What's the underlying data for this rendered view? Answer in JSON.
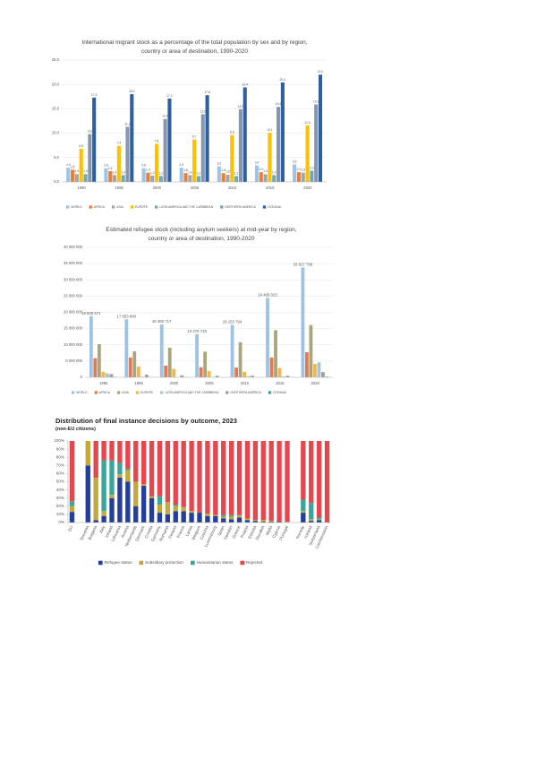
{
  "chart_data": [
    {
      "type": "bar",
      "title": "International migrant stock as a percentage of the total population by sex and by region, country or area of destination, 1990-2020",
      "categories": [
        "1990",
        "1995",
        "2000",
        "2005",
        "2010",
        "2015",
        "2020"
      ],
      "ylim": [
        0,
        25
      ],
      "yticks": [
        {
          "value": 0,
          "label": "0,0"
        },
        {
          "value": 5,
          "label": "5,0"
        },
        {
          "value": 10,
          "label": "10,0"
        },
        {
          "value": 15,
          "label": "15,0"
        },
        {
          "value": 20,
          "label": "20,0"
        },
        {
          "value": 25,
          "label": "25,0"
        }
      ],
      "grid": true,
      "legend": "bottom",
      "series": [
        {
          "name": "WORLD",
          "color": "#9dc3e6",
          "values": [
            2.9,
            2.8,
            2.8,
            2.9,
            3.2,
            3.4,
            3.6
          ],
          "value_labels": [
            "2,9",
            "2,8",
            "2,8",
            "2,9",
            "3,2",
            "3,4",
            "3,6"
          ]
        },
        {
          "name": "AFRICA",
          "color": "#ed7d31",
          "values": [
            2.5,
            2.2,
            1.9,
            1.8,
            1.8,
            2.0,
            2.0
          ],
          "value_labels": [
            "2,5",
            "2,2",
            "1,9",
            "1,8",
            "1,8",
            "2,0",
            "2,0"
          ]
        },
        {
          "name": "ASIA",
          "color": "#a5a5a5",
          "values": [
            1.6,
            1.4,
            1.3,
            1.4,
            1.5,
            1.6,
            1.9
          ],
          "value_labels": [
            "1,6",
            "1,4",
            "1,3",
            "1,4",
            "1,5",
            "1,6",
            "1,9"
          ]
        },
        {
          "name": "EUROPE",
          "color": "#ffc000",
          "values": [
            6.8,
            7.4,
            7.8,
            8.7,
            9.6,
            10.1,
            11.6
          ],
          "value_labels": [
            "6,8",
            "7,4",
            "7,8",
            "8,7",
            "9,6",
            "10,1",
            "11,6"
          ]
        },
        {
          "name": "LATIN AMERICA AND THE CARIBBEAN",
          "color": "#6fa8b8",
          "values": [
            1.6,
            1.4,
            1.2,
            1.2,
            1.2,
            1.4,
            2.3
          ],
          "value_labels": [
            "1,6",
            "1,4",
            "1,2",
            "1,2",
            "1,2",
            "1,4",
            "2,3"
          ]
        },
        {
          "name": "NORTHERN AMERICA",
          "color": "#8497b0",
          "values": [
            9.8,
            11.3,
            12.9,
            13.9,
            14.9,
            15.4,
            15.9
          ],
          "value_labels": [
            "9,8",
            "11,3",
            "12,9",
            "13,9",
            "14,9",
            "15,4",
            "15,9"
          ]
        },
        {
          "name": "OCEANIA",
          "color": "#2e5fa3",
          "values": [
            17.3,
            18.0,
            17.1,
            17.8,
            19.4,
            20.4,
            22.0
          ],
          "value_labels": [
            "17,3",
            "18,0",
            "17,1",
            "17,8",
            "19,4",
            "20,4",
            "22,0"
          ]
        }
      ]
    },
    {
      "type": "bar",
      "title": "Estimated refugee stock (including asylum seekers) at mid-year by region, country or area of destination, 1990-2020",
      "categories": [
        "1990",
        "1995",
        "2000",
        "2005",
        "2010",
        "2015",
        "2020"
      ],
      "ylim": [
        0,
        40000000
      ],
      "yticks": [
        0,
        {
          "value": 5000000,
          "label": "5 000 000"
        },
        {
          "value": 10000000,
          "label": "10 000 000"
        },
        {
          "value": 15000000,
          "label": "15 000 000"
        },
        {
          "value": 20000000,
          "label": "20 000 000"
        },
        {
          "value": 25000000,
          "label": "25 000 000"
        },
        {
          "value": 30000000,
          "label": "30 000 000"
        },
        {
          "value": 35000000,
          "label": "35 000 000"
        },
        {
          "value": 40000000,
          "label": "40 000 000"
        }
      ],
      "grid": true,
      "legend": "bottom",
      "series": [
        {
          "name": "WORLD",
          "color": "#9dc3e6",
          "values": [
            18836571,
            17853840,
            16300717,
            13276733,
            16153794,
            24405023,
            33827798
          ],
          "value_labels": [
            "18 836 571",
            "17 853 840",
            "16 300 717",
            "13 276 733",
            "16 153 794",
            "24 405 023",
            "33 827 798"
          ]
        },
        {
          "name": "AFRICA",
          "color": "#e07b53",
          "values": [
            5900000,
            6100000,
            3600000,
            3100000,
            3000000,
            6100000,
            7700000
          ]
        },
        {
          "name": "ASIA",
          "color": "#a9a57c",
          "values": [
            10200000,
            8000000,
            9100000,
            7900000,
            10800000,
            14500000,
            16100000
          ]
        },
        {
          "name": "EUROPE",
          "color": "#f0b84c",
          "values": [
            1700000,
            3300000,
            2600000,
            1900000,
            1700000,
            2900000,
            4100000
          ]
        },
        {
          "name": "LATIN AMERICA AND THE CARIBBEAN",
          "color": "#a7c4d8",
          "values": [
            1200000,
            200000,
            100000,
            100000,
            400000,
            300000,
            4600000
          ]
        },
        {
          "name": "NORTHERN AMERICA",
          "color": "#9aa0a6",
          "values": [
            1000000,
            800000,
            600000,
            500000,
            500000,
            500000,
            1600000
          ]
        },
        {
          "name": "OCEANIA",
          "color": "#4a9b8e",
          "values": [
            100000,
            70000,
            70000,
            40000,
            40000,
            50000,
            200000
          ]
        }
      ]
    },
    {
      "type": "stacked_bar",
      "title": "Distribution of final instance decisions by outcome, 2023",
      "subtitle": "(non-EU citizens)",
      "categories": [
        "EU",
        null,
        "Slovenia",
        "Bulgaria",
        "Italy",
        "Ireland",
        "Lithuania",
        "Austria",
        "Netherlands",
        "Denmark",
        "Croatia",
        "Germany",
        "Romania",
        "Finland",
        "France",
        "Latvia",
        "Belgium",
        "Czechia",
        "Luxembourg",
        "Spain",
        "Sweden",
        "Greece",
        "Poland",
        "Estonia",
        "Slovakia",
        "Malta",
        "Cyprus",
        "Portugal",
        null,
        "Norway",
        "Iceland",
        "Switzerland",
        "Liechtenstein"
      ],
      "ylim": [
        0,
        100
      ],
      "yticks": [
        {
          "value": 0,
          "label": "0%"
        },
        {
          "value": 10,
          "label": "10%"
        },
        {
          "value": 20,
          "label": "20%"
        },
        {
          "value": 30,
          "label": "30%"
        },
        {
          "value": 40,
          "label": "40%"
        },
        {
          "value": 50,
          "label": "50%"
        },
        {
          "value": 60,
          "label": "60%"
        },
        {
          "value": 70,
          "label": "70%"
        },
        {
          "value": 80,
          "label": "80%"
        },
        {
          "value": 90,
          "label": "90%"
        },
        {
          "value": 100,
          "label": "100%"
        }
      ],
      "grid": false,
      "legend": "bottom",
      "series": [
        {
          "name": "Refugee status",
          "color": "#243f99",
          "values": [
            13,
            null,
            70,
            3,
            8,
            30,
            55,
            50,
            20,
            45,
            30,
            12,
            10,
            14,
            14,
            12,
            12,
            8,
            8,
            5,
            4,
            6,
            3,
            2,
            1,
            1,
            1,
            0,
            null,
            12,
            2,
            3,
            0
          ]
        },
        {
          "name": "Subsidiary protection",
          "color": "#c2a93a",
          "values": [
            7,
            null,
            30,
            52,
            6,
            4,
            4,
            14,
            30,
            2,
            2,
            10,
            15,
            6,
            5,
            2,
            0,
            3,
            1,
            2,
            3,
            3,
            2,
            1,
            2,
            1,
            0,
            1,
            null,
            2,
            2,
            1,
            0
          ]
        },
        {
          "name": "Humanitarian status",
          "color": "#3aa59c",
          "values": [
            6,
            null,
            0,
            0,
            62,
            42,
            14,
            2,
            0,
            0,
            0,
            10,
            0,
            2,
            0,
            0,
            0,
            0,
            0,
            2,
            2,
            0,
            0,
            0,
            0,
            0,
            0,
            0,
            null,
            14,
            20,
            2,
            0
          ]
        },
        {
          "name": "Rejected",
          "color": "#e5474f",
          "values": [
            74,
            null,
            0,
            45,
            24,
            24,
            27,
            34,
            50,
            53,
            68,
            68,
            75,
            78,
            81,
            86,
            88,
            89,
            91,
            91,
            91,
            91,
            95,
            97,
            97,
            98,
            99,
            99,
            null,
            72,
            76,
            94,
            100
          ]
        }
      ]
    }
  ]
}
